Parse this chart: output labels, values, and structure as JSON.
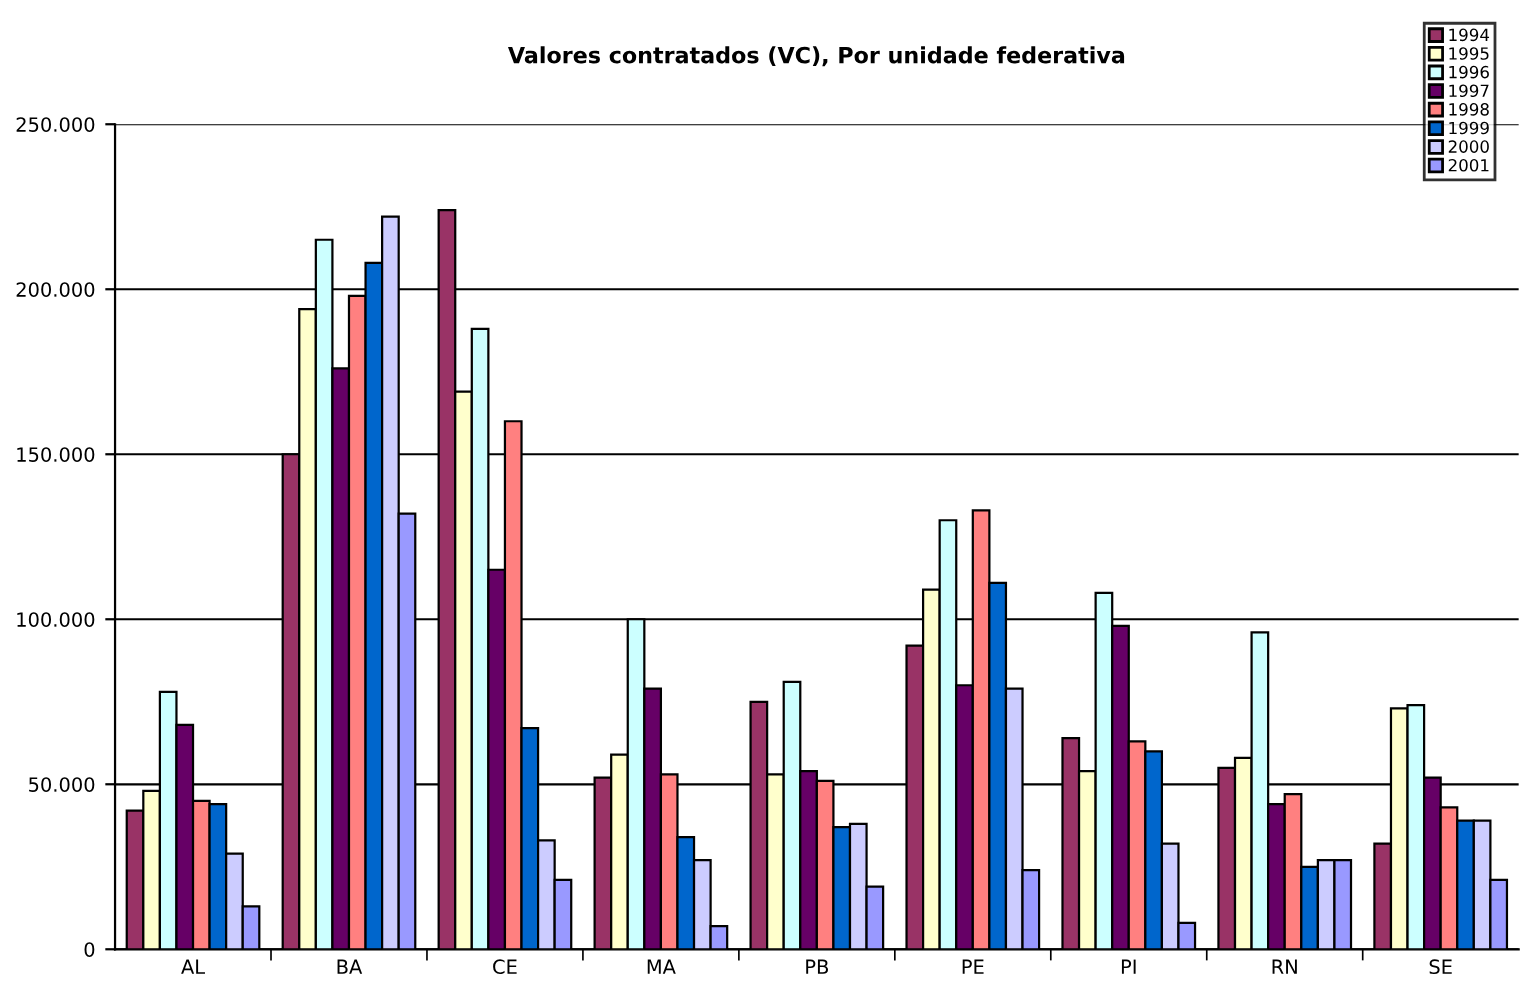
{
  "chart_data": {
    "type": "bar",
    "title": "Valores contratados (VC), Por unidade federativa",
    "categories": [
      "AL",
      "BA",
      "CE",
      "MA",
      "PB",
      "PE",
      "PI",
      "RN",
      "SE"
    ],
    "series": [
      {
        "name": "1994",
        "color": "#993366",
        "values": [
          42000,
          150000,
          224000,
          52000,
          75000,
          92000,
          64000,
          55000,
          32000
        ]
      },
      {
        "name": "1995",
        "color": "#ffffcc",
        "values": [
          48000,
          194000,
          169000,
          59000,
          53000,
          109000,
          54000,
          58000,
          73000
        ]
      },
      {
        "name": "1996",
        "color": "#ccffff",
        "values": [
          78000,
          215000,
          188000,
          100000,
          81000,
          130000,
          108000,
          96000,
          74000
        ]
      },
      {
        "name": "1997",
        "color": "#660066",
        "values": [
          68000,
          176000,
          115000,
          79000,
          54000,
          80000,
          98000,
          44000,
          52000
        ]
      },
      {
        "name": "1998",
        "color": "#ff8080",
        "values": [
          45000,
          198000,
          160000,
          53000,
          51000,
          133000,
          63000,
          47000,
          43000
        ]
      },
      {
        "name": "1999",
        "color": "#0066cc",
        "values": [
          44000,
          208000,
          67000,
          34000,
          37000,
          111000,
          60000,
          25000,
          39000
        ]
      },
      {
        "name": "2000",
        "color": "#ccccff",
        "values": [
          29000,
          222000,
          33000,
          27000,
          38000,
          79000,
          32000,
          27000,
          39000
        ]
      },
      {
        "name": "2001",
        "color": "#9999ff",
        "values": [
          13000,
          132000,
          21000,
          7000,
          19000,
          24000,
          8000,
          27000,
          21000
        ]
      }
    ],
    "ylim": [
      0,
      250000
    ],
    "yticks": [
      {
        "value": 0,
        "label": "0"
      },
      {
        "value": 50000,
        "label": "50.000"
      },
      {
        "value": 100000,
        "label": "100.000"
      },
      {
        "value": 150000,
        "label": "150.000"
      },
      {
        "value": 200000,
        "label": "200.000"
      },
      {
        "value": 250000,
        "label": "250.000"
      }
    ],
    "grid": "y",
    "legend": "top right"
  }
}
